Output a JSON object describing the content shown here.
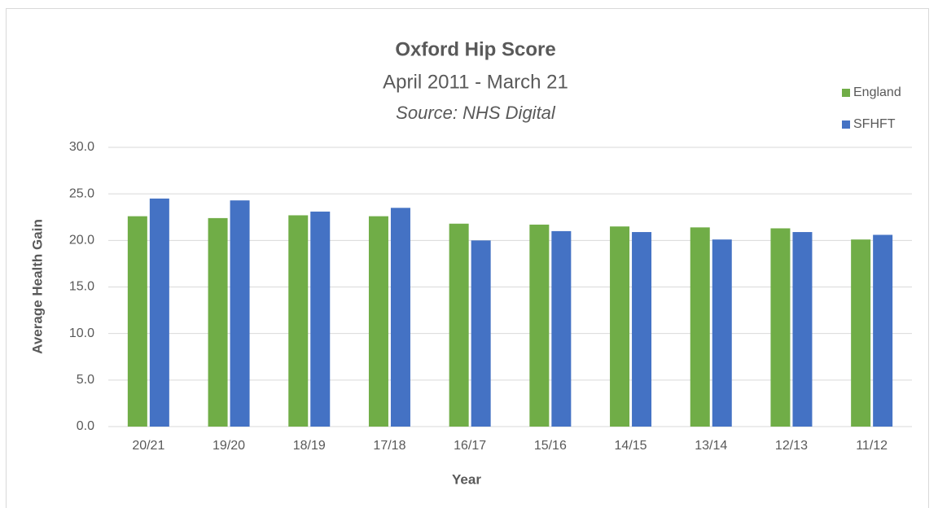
{
  "chart_data": {
    "type": "bar",
    "title": "Oxford Hip Score",
    "subtitle": "April 2011 - March 21",
    "source": "Source: NHS Digital",
    "x_label": "Year",
    "y_label": "Average Health Gain",
    "categories": [
      "20/21",
      "19/20",
      "18/19",
      "17/18",
      "16/17",
      "15/16",
      "14/15",
      "13/14",
      "12/13",
      "11/12"
    ],
    "series": [
      {
        "name": "England",
        "color": "#70ad47",
        "values": [
          22.6,
          22.4,
          22.7,
          22.6,
          21.8,
          21.7,
          21.5,
          21.4,
          21.3,
          20.1
        ]
      },
      {
        "name": "SFHFT",
        "color": "#4472c4",
        "values": [
          24.5,
          24.3,
          23.1,
          23.5,
          20.0,
          21.0,
          20.9,
          20.1,
          20.9,
          20.6
        ]
      }
    ],
    "ylim": [
      0,
      30
    ],
    "yticks": [
      {
        "value": 0,
        "label": "0.0"
      },
      {
        "value": 5,
        "label": "5.0"
      },
      {
        "value": 10,
        "label": "10.0"
      },
      {
        "value": 15,
        "label": "15.0"
      },
      {
        "value": 20,
        "label": "20.0"
      },
      {
        "value": 25,
        "label": "25.0"
      },
      {
        "value": 30,
        "label": "30.0"
      }
    ],
    "grid": true,
    "legend": "top-right"
  }
}
